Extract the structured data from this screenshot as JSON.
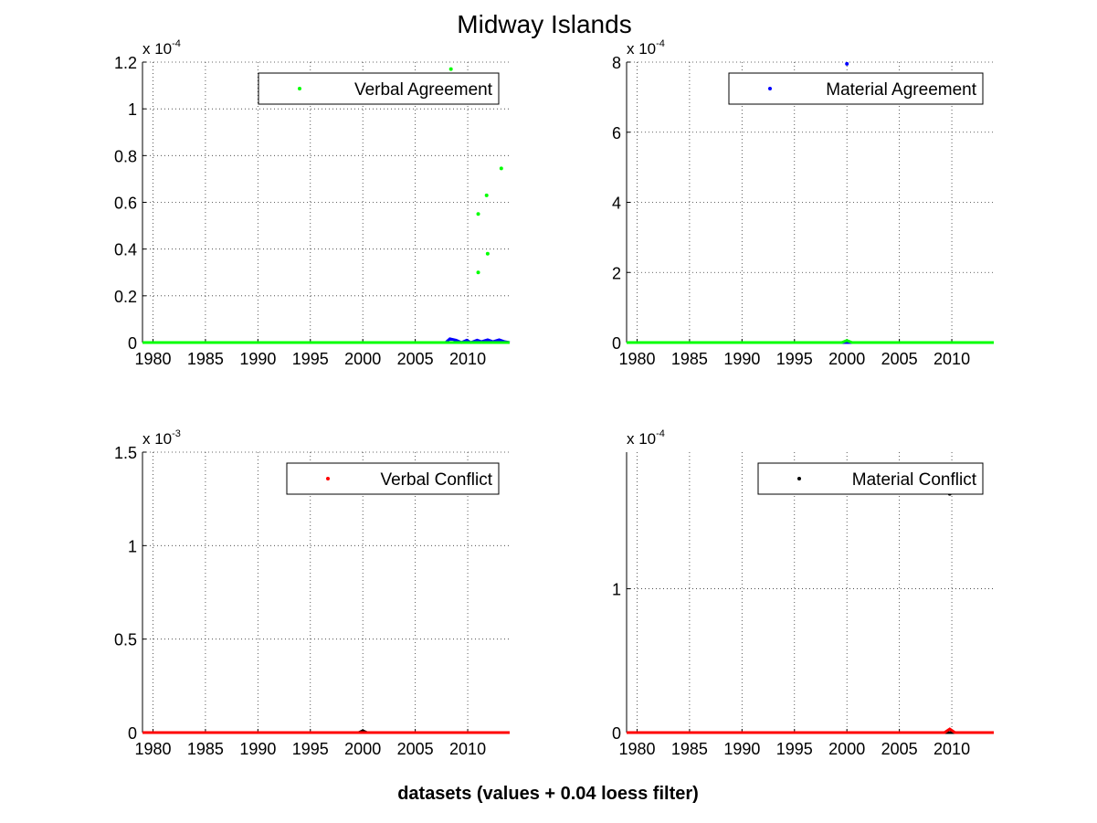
{
  "figure": {
    "title": "Midway Islands",
    "xlabel": "datasets (values + 0.04 loess filter)"
  },
  "chart_data": [
    {
      "type": "scatter",
      "legend": "Verbal Agreement",
      "legend_placement": "top-right",
      "exponent_label": "x 10",
      "exponent": "-4",
      "xlim": [
        1979,
        2014
      ],
      "ylim": [
        0,
        1.2
      ],
      "grid": true,
      "xticks": [
        1980,
        1985,
        1990,
        1995,
        2000,
        2005,
        2010
      ],
      "xtick_labels": [
        "1980",
        "1985",
        "1990",
        "1995",
        "2000",
        "2005",
        "2010"
      ],
      "yticks": [
        0,
        0.2,
        0.4,
        0.6,
        0.8,
        1,
        1.2
      ],
      "ytick_labels": [
        "0",
        "0.2",
        "0.4",
        "0.6",
        "0.8",
        "1",
        "1.2"
      ],
      "marker_color": "#00ff00",
      "points": [
        {
          "x": 2008.4,
          "y": 1.17
        },
        {
          "x": 2011.0,
          "y": 0.3
        },
        {
          "x": 2011.0,
          "y": 0.55
        },
        {
          "x": 2011.8,
          "y": 0.63
        },
        {
          "x": 2011.9,
          "y": 0.38
        },
        {
          "x": 2013.2,
          "y": 0.745
        }
      ],
      "filter_lines": [
        {
          "color": "#0000ff",
          "points": [
            [
              1979,
              0
            ],
            [
              2007.9,
              0
            ],
            [
              2008.3,
              0.016
            ],
            [
              2008.9,
              0.01
            ],
            [
              2009.4,
              0
            ],
            [
              2009.9,
              0.01
            ],
            [
              2010.3,
              0
            ],
            [
              2010.9,
              0.01
            ],
            [
              2011.3,
              0.004
            ],
            [
              2011.9,
              0.012
            ],
            [
              2012.4,
              0.004
            ],
            [
              2013,
              0.012
            ],
            [
              2013.5,
              0.004
            ],
            [
              2014,
              0
            ]
          ]
        },
        {
          "color": "#00ff00",
          "points": [
            [
              1979,
              0
            ],
            [
              2014,
              0
            ]
          ]
        }
      ]
    },
    {
      "type": "scatter",
      "legend": "Material Agreement",
      "legend_placement": "top-right",
      "exponent_label": "x 10",
      "exponent": "-4",
      "xlim": [
        1979,
        2014
      ],
      "ylim": [
        0,
        8
      ],
      "grid": true,
      "xticks": [
        1980,
        1985,
        1990,
        1995,
        2000,
        2005,
        2010
      ],
      "xtick_labels": [
        "1980",
        "1985",
        "1990",
        "1995",
        "2000",
        "2005",
        "2010"
      ],
      "yticks": [
        0,
        2,
        4,
        6,
        8
      ],
      "ytick_labels": [
        "0",
        "2",
        "4",
        "6",
        "8"
      ],
      "marker_color": "#0000ff",
      "points": [
        {
          "x": 2000.0,
          "y": 7.95
        }
      ],
      "filter_lines": [
        {
          "color": "#0000ff",
          "points": [
            [
              1979,
              0
            ],
            [
              2014,
              0
            ]
          ]
        },
        {
          "color": "#00ff00",
          "points": [
            [
              1979,
              0
            ],
            [
              1999.5,
              0
            ],
            [
              2000,
              0.06
            ],
            [
              2000.5,
              0
            ],
            [
              2014,
              0
            ]
          ]
        }
      ]
    },
    {
      "type": "scatter",
      "legend": "Verbal Conflict",
      "legend_placement": "top-right",
      "exponent_label": "x 10",
      "exponent": "-3",
      "xlim": [
        1979,
        2014
      ],
      "ylim": [
        0,
        1.5
      ],
      "grid": true,
      "xticks": [
        1980,
        1985,
        1990,
        1995,
        2000,
        2005,
        2010
      ],
      "xtick_labels": [
        "1980",
        "1985",
        "1990",
        "1995",
        "2000",
        "2005",
        "2010"
      ],
      "yticks": [
        0,
        0.5,
        1,
        1.5
      ],
      "ytick_labels": [
        "0",
        "0.5",
        "1",
        "1.5"
      ],
      "marker_color": "#ff0000",
      "points": [],
      "filter_lines": [
        {
          "color": "#000000",
          "points": [
            [
              1979,
              0
            ],
            [
              1999.6,
              0
            ],
            [
              2000,
              0.01
            ],
            [
              2000.4,
              0
            ],
            [
              2014,
              0
            ]
          ]
        },
        {
          "color": "#ff0000",
          "points": [
            [
              1979,
              0
            ],
            [
              2014,
              0
            ]
          ]
        }
      ]
    },
    {
      "type": "scatter",
      "legend": "Material Conflict",
      "legend_placement": "top-right",
      "exponent_label": "x 10",
      "exponent": "-4",
      "xlim": [
        1979,
        2014
      ],
      "ylim": [
        0,
        1.95
      ],
      "grid": true,
      "xticks": [
        1980,
        1985,
        1990,
        1995,
        2000,
        2005,
        2010
      ],
      "xtick_labels": [
        "1980",
        "1985",
        "1990",
        "1995",
        "2000",
        "2005",
        "2010"
      ],
      "yticks": [
        0,
        1
      ],
      "ytick_labels": [
        "0",
        "1"
      ],
      "marker_color": "#000000",
      "points": [
        {
          "x": 2009.8,
          "y": 1.66
        }
      ],
      "filter_lines": [
        {
          "color": "#000000",
          "points": [
            [
              1979,
              0
            ],
            [
              2014,
              0
            ]
          ]
        },
        {
          "color": "#ff0000",
          "points": [
            [
              1979,
              0
            ],
            [
              2009.3,
              0
            ],
            [
              2009.8,
              0.025
            ],
            [
              2010.3,
              0
            ],
            [
              2014,
              0
            ]
          ]
        }
      ]
    }
  ]
}
